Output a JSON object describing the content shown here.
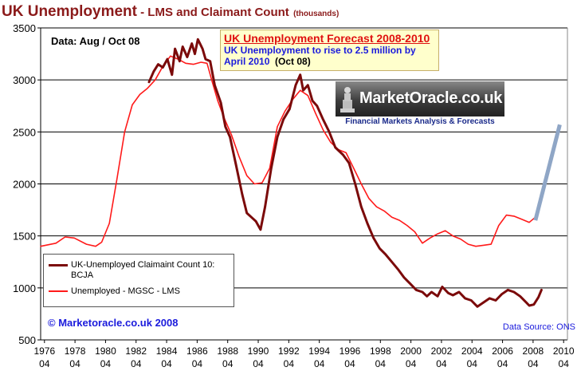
{
  "title": {
    "main": "UK Unemployment",
    "sub": " - LMS and Claimant Count",
    "unit": "(thousands)"
  },
  "data_note": "Data: Aug / Oct 08",
  "forecast": {
    "title": "UK Unemployment Forecast 2008-2010",
    "line1": "UK Unemployment to rise to 2.5 million by",
    "line2": "April 2010",
    "line2b": "(Oct 08)"
  },
  "logo": {
    "text": "MarketOracle.co.uk",
    "tagline": "Financial Markets Analysis & Forecasts"
  },
  "copyright": "© Marketoracle.co.uk  2008",
  "source": "Data Source: ONS",
  "colors": {
    "claimant": "#7b0a0a",
    "lms": "#ff1a1a",
    "forecast": "#8fa6c6",
    "grid": "#000000",
    "title": "#8b1a1a",
    "blue_text": "#1a1adc"
  },
  "chart_data": {
    "type": "line",
    "title": "UK Unemployment - LMS and Claimant Count (thousands)",
    "xlabel": "",
    "ylabel": "",
    "xlim": [
      1976.0,
      2010.5
    ],
    "ylim": [
      500,
      3500
    ],
    "y_ticks": [
      500,
      1000,
      1500,
      2000,
      2500,
      3000,
      3500
    ],
    "x_tick_years": [
      "1976",
      "1978",
      "1980",
      "1982",
      "1984",
      "1986",
      "1988",
      "1990",
      "1992",
      "1994",
      "1996",
      "1998",
      "2000",
      "2002",
      "2004",
      "2006",
      "2008",
      "2010"
    ],
    "x_tick_month": "04",
    "grid": "horizontal",
    "legend_position": "bottom-left",
    "series": [
      {
        "name": "UK-Unemployed Claimaint Count 10: BCJA",
        "color": "#7b0a0a",
        "points": [
          [
            1983.1,
            2980
          ],
          [
            1983.4,
            3080
          ],
          [
            1983.7,
            3150
          ],
          [
            1984.0,
            3120
          ],
          [
            1984.3,
            3200
          ],
          [
            1984.6,
            3050
          ],
          [
            1984.8,
            3300
          ],
          [
            1985.1,
            3180
          ],
          [
            1985.3,
            3320
          ],
          [
            1985.6,
            3220
          ],
          [
            1985.9,
            3350
          ],
          [
            1986.1,
            3250
          ],
          [
            1986.3,
            3390
          ],
          [
            1986.6,
            3300
          ],
          [
            1986.8,
            3200
          ],
          [
            1987.1,
            3180
          ],
          [
            1987.4,
            2950
          ],
          [
            1987.8,
            2780
          ],
          [
            1988.1,
            2550
          ],
          [
            1988.4,
            2450
          ],
          [
            1988.8,
            2180
          ],
          [
            1989.2,
            1900
          ],
          [
            1989.5,
            1720
          ],
          [
            1989.8,
            1680
          ],
          [
            1990.1,
            1640
          ],
          [
            1990.4,
            1560
          ],
          [
            1990.7,
            1780
          ],
          [
            1991.1,
            2150
          ],
          [
            1991.5,
            2450
          ],
          [
            1991.9,
            2620
          ],
          [
            1992.3,
            2720
          ],
          [
            1992.7,
            2950
          ],
          [
            1993.0,
            3050
          ],
          [
            1993.2,
            2900
          ],
          [
            1993.5,
            2950
          ],
          [
            1993.8,
            2800
          ],
          [
            1994.1,
            2750
          ],
          [
            1994.5,
            2620
          ],
          [
            1994.9,
            2500
          ],
          [
            1995.3,
            2350
          ],
          [
            1995.8,
            2280
          ],
          [
            1996.2,
            2200
          ],
          [
            1996.6,
            2000
          ],
          [
            1997.0,
            1780
          ],
          [
            1997.4,
            1620
          ],
          [
            1997.8,
            1480
          ],
          [
            1998.2,
            1380
          ],
          [
            1998.6,
            1320
          ],
          [
            1999.0,
            1250
          ],
          [
            1999.4,
            1180
          ],
          [
            1999.8,
            1100
          ],
          [
            2000.2,
            1040
          ],
          [
            2000.6,
            980
          ],
          [
            2001.0,
            960
          ],
          [
            2001.3,
            920
          ],
          [
            2001.6,
            960
          ],
          [
            2002.0,
            920
          ],
          [
            2002.3,
            1010
          ],
          [
            2002.7,
            950
          ],
          [
            2003.0,
            930
          ],
          [
            2003.4,
            960
          ],
          [
            2003.8,
            900
          ],
          [
            2004.2,
            880
          ],
          [
            2004.6,
            820
          ],
          [
            2005.0,
            860
          ],
          [
            2005.4,
            900
          ],
          [
            2005.8,
            880
          ],
          [
            2006.2,
            940
          ],
          [
            2006.6,
            980
          ],
          [
            2007.0,
            960
          ],
          [
            2007.4,
            920
          ],
          [
            2007.8,
            860
          ],
          [
            2008.0,
            830
          ],
          [
            2008.3,
            840
          ],
          [
            2008.6,
            910
          ],
          [
            2008.8,
            980
          ]
        ]
      },
      {
        "name": "Unemployed - MGSC - LMS",
        "color": "#ff1a1a",
        "points": [
          [
            1976.0,
            1400
          ],
          [
            1977.0,
            1430
          ],
          [
            1977.6,
            1490
          ],
          [
            1978.2,
            1480
          ],
          [
            1979.0,
            1420
          ],
          [
            1979.6,
            1400
          ],
          [
            1980.0,
            1440
          ],
          [
            1980.5,
            1620
          ],
          [
            1981.0,
            2050
          ],
          [
            1981.5,
            2500
          ],
          [
            1982.0,
            2760
          ],
          [
            1982.5,
            2860
          ],
          [
            1983.0,
            2920
          ],
          [
            1983.5,
            3000
          ],
          [
            1984.0,
            3130
          ],
          [
            1984.5,
            3230
          ],
          [
            1985.0,
            3200
          ],
          [
            1985.5,
            3160
          ],
          [
            1986.0,
            3150
          ],
          [
            1986.5,
            3170
          ],
          [
            1986.9,
            3160
          ],
          [
            1987.2,
            3000
          ],
          [
            1987.6,
            2800
          ],
          [
            1988.0,
            2640
          ],
          [
            1988.5,
            2470
          ],
          [
            1989.0,
            2260
          ],
          [
            1989.5,
            2080
          ],
          [
            1990.0,
            2000
          ],
          [
            1990.5,
            2010
          ],
          [
            1991.0,
            2150
          ],
          [
            1991.5,
            2550
          ],
          [
            1992.0,
            2700
          ],
          [
            1992.5,
            2810
          ],
          [
            1993.0,
            2900
          ],
          [
            1993.5,
            2850
          ],
          [
            1994.0,
            2680
          ],
          [
            1994.5,
            2520
          ],
          [
            1995.0,
            2400
          ],
          [
            1995.5,
            2330
          ],
          [
            1996.0,
            2300
          ],
          [
            1996.5,
            2150
          ],
          [
            1997.0,
            2000
          ],
          [
            1997.5,
            1860
          ],
          [
            1998.0,
            1780
          ],
          [
            1998.5,
            1740
          ],
          [
            1999.0,
            1680
          ],
          [
            1999.5,
            1650
          ],
          [
            2000.0,
            1600
          ],
          [
            2000.5,
            1540
          ],
          [
            2001.0,
            1430
          ],
          [
            2001.5,
            1480
          ],
          [
            2002.0,
            1520
          ],
          [
            2002.5,
            1550
          ],
          [
            2003.0,
            1500
          ],
          [
            2003.5,
            1470
          ],
          [
            2004.0,
            1420
          ],
          [
            2004.5,
            1400
          ],
          [
            2005.0,
            1410
          ],
          [
            2005.5,
            1420
          ],
          [
            2006.0,
            1600
          ],
          [
            2006.5,
            1700
          ],
          [
            2007.0,
            1690
          ],
          [
            2007.5,
            1660
          ],
          [
            2008.0,
            1630
          ],
          [
            2008.4,
            1680
          ],
          [
            2008.7,
            1800
          ]
        ]
      },
      {
        "name": "Forecast",
        "color": "#8fa6c6",
        "points": [
          [
            2008.4,
            1650
          ],
          [
            2010.0,
            2570
          ]
        ]
      }
    ]
  }
}
